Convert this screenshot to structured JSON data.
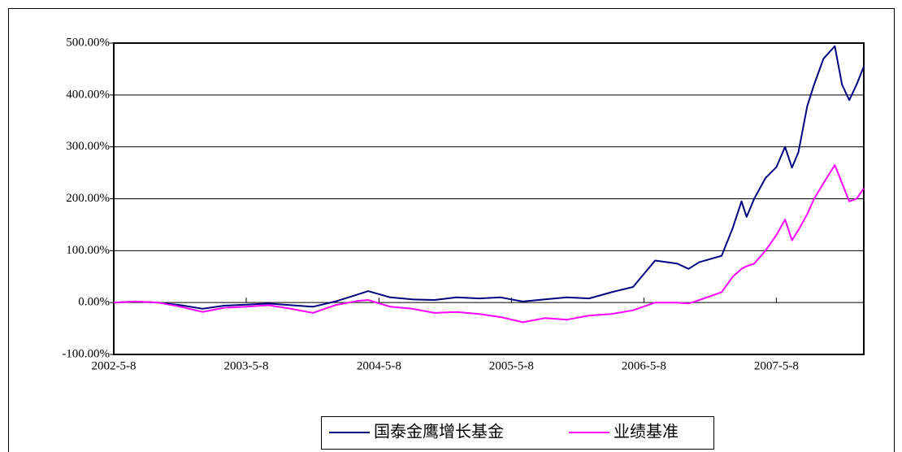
{
  "chart_data": {
    "type": "line",
    "x": [
      "2002-5-8",
      "2002-7-8",
      "2002-9-8",
      "2002-11-8",
      "2003-1-8",
      "2003-3-8",
      "2003-5-8",
      "2003-7-8",
      "2003-9-8",
      "2003-11-8",
      "2004-1-8",
      "2004-3-8",
      "2004-4-8",
      "2004-6-8",
      "2004-8-8",
      "2004-10-8",
      "2004-12-8",
      "2005-2-8",
      "2005-4-8",
      "2005-6-8",
      "2005-8-8",
      "2005-10-8",
      "2005-12-8",
      "2006-2-8",
      "2006-4-8",
      "2006-6-8",
      "2006-8-8",
      "2006-9-8",
      "2006-10-8",
      "2006-12-8",
      "2007-1-8",
      "2007-2-1",
      "2007-2-15",
      "2007-3-8",
      "2007-4-8",
      "2007-5-8",
      "2007-6-1",
      "2007-6-20",
      "2007-7-8",
      "2007-8-1",
      "2007-8-20",
      "2007-9-15",
      "2007-10-16",
      "2007-11-5",
      "2007-11-25",
      "2007-12-15",
      "2008-1-4"
    ],
    "series": [
      {
        "name": "国泰金鹰增长基金",
        "color": "#000080",
        "values": [
          0,
          2,
          0,
          -5,
          -12,
          -6,
          -4,
          -2,
          -5,
          -8,
          2,
          15,
          22,
          10,
          6,
          5,
          10,
          8,
          10,
          2,
          6,
          10,
          8,
          20,
          30,
          81,
          75,
          65,
          78,
          90,
          144,
          195,
          165,
          200,
          240,
          261,
          300,
          260,
          290,
          378,
          420,
          470,
          494,
          420,
          390,
          420,
          455
        ]
      },
      {
        "name": "业绩基准",
        "color": "#ff00ff",
        "values": [
          0,
          2,
          0,
          -8,
          -18,
          -10,
          -8,
          -5,
          -12,
          -20,
          -5,
          3,
          5,
          -8,
          -12,
          -20,
          -18,
          -22,
          -28,
          -38,
          -30,
          -33,
          -25,
          -22,
          -15,
          0,
          0,
          -2,
          5,
          20,
          50,
          65,
          70,
          75,
          100,
          130,
          160,
          120,
          140,
          170,
          200,
          230,
          265,
          230,
          195,
          200,
          220
        ]
      }
    ],
    "xlim": [
      "2002-5-8",
      "2008-1-4"
    ],
    "xticks": [
      "2002-5-8",
      "2003-5-8",
      "2004-5-8",
      "2005-5-8",
      "2006-5-8",
      "2007-5-8"
    ],
    "ylim": [
      -100,
      500
    ],
    "yticks": [
      {
        "value": -100,
        "label": "-100.00%"
      },
      {
        "value": 0,
        "label": "0.00%"
      },
      {
        "value": 100,
        "label": "100.00%"
      },
      {
        "value": 200,
        "label": "200.00%"
      },
      {
        "value": 300,
        "label": "300.00%"
      },
      {
        "value": 400,
        "label": "400.00%"
      },
      {
        "value": 500,
        "label": "500.00%"
      }
    ],
    "grid": true
  }
}
